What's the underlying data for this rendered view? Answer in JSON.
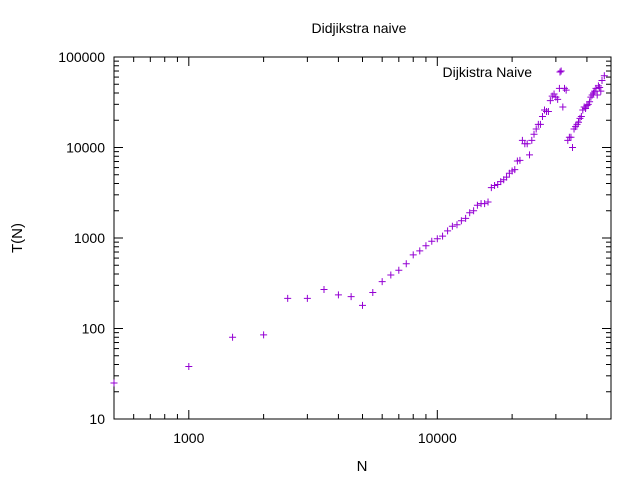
{
  "chart_data": {
    "type": "scatter",
    "title": "Didjikstra naive",
    "xlabel": "N",
    "ylabel": "T(N)",
    "xscale": "log",
    "yscale": "log",
    "xlim": [
      500,
      50000
    ],
    "ylim": [
      10,
      100000
    ],
    "grid": false,
    "legend": "top-right",
    "x_ticks": [
      {
        "value": 1000,
        "label": "1000"
      },
      {
        "value": 10000,
        "label": "10000"
      }
    ],
    "y_ticks": [
      {
        "value": 10,
        "label": "10"
      },
      {
        "value": 100,
        "label": "100"
      },
      {
        "value": 1000,
        "label": "1000"
      },
      {
        "value": 10000,
        "label": "10000"
      },
      {
        "value": 100000,
        "label": "100000"
      }
    ],
    "series": [
      {
        "name": "Dijkistra Naive",
        "color": "#9400d3",
        "marker": "plus",
        "points": [
          [
            500,
            25
          ],
          [
            1000,
            38
          ],
          [
            1500,
            80
          ],
          [
            2000,
            85
          ],
          [
            2500,
            215
          ],
          [
            3000,
            215
          ],
          [
            3500,
            270
          ],
          [
            4000,
            235
          ],
          [
            4500,
            225
          ],
          [
            5000,
            180
          ],
          [
            5500,
            250
          ],
          [
            6000,
            330
          ],
          [
            6500,
            390
          ],
          [
            7000,
            440
          ],
          [
            7500,
            520
          ],
          [
            8000,
            650
          ],
          [
            8500,
            720
          ],
          [
            9000,
            820
          ],
          [
            9500,
            920
          ],
          [
            10000,
            980
          ],
          [
            10500,
            1050
          ],
          [
            11000,
            1200
          ],
          [
            11500,
            1350
          ],
          [
            12000,
            1400
          ],
          [
            12500,
            1550
          ],
          [
            13000,
            1650
          ],
          [
            13500,
            1900
          ],
          [
            14000,
            2000
          ],
          [
            14500,
            2300
          ],
          [
            15000,
            2400
          ],
          [
            15500,
            2400
          ],
          [
            16000,
            2500
          ],
          [
            16500,
            3600
          ],
          [
            17000,
            3800
          ],
          [
            17500,
            3900
          ],
          [
            18000,
            4200
          ],
          [
            18500,
            4400
          ],
          [
            19000,
            4700
          ],
          [
            19500,
            5200
          ],
          [
            20000,
            5500
          ],
          [
            20500,
            5700
          ],
          [
            21000,
            7100
          ],
          [
            21500,
            7200
          ],
          [
            22000,
            12000
          ],
          [
            22500,
            11000
          ],
          [
            23000,
            11000
          ],
          [
            23500,
            8300
          ],
          [
            24000,
            12000
          ],
          [
            24500,
            14000
          ],
          [
            25000,
            16000
          ],
          [
            25500,
            18000
          ],
          [
            26000,
            18000
          ],
          [
            26500,
            22000
          ],
          [
            27000,
            26000
          ],
          [
            27500,
            25000
          ],
          [
            28000,
            25000
          ],
          [
            28500,
            33000
          ],
          [
            29000,
            37000
          ],
          [
            29500,
            39000
          ],
          [
            30000,
            36000
          ],
          [
            30500,
            34000
          ],
          [
            31000,
            45000
          ],
          [
            31500,
            70000
          ],
          [
            32000,
            28000
          ],
          [
            32500,
            45000
          ],
          [
            33000,
            43000
          ],
          [
            33500,
            12000
          ],
          [
            34000,
            13000
          ],
          [
            34500,
            13000
          ],
          [
            35000,
            10000
          ],
          [
            35500,
            16000
          ],
          [
            36000,
            17000
          ],
          [
            36500,
            18000
          ],
          [
            37000,
            19000
          ],
          [
            37500,
            21000
          ],
          [
            38000,
            22000
          ],
          [
            38500,
            26000
          ],
          [
            39000,
            28000
          ],
          [
            39500,
            27000
          ],
          [
            40000,
            29000
          ],
          [
            40500,
            30000
          ],
          [
            41000,
            32000
          ],
          [
            41500,
            36000
          ],
          [
            42000,
            38000
          ],
          [
            42500,
            40000
          ],
          [
            43000,
            42000
          ],
          [
            43500,
            45000
          ],
          [
            44000,
            38000
          ],
          [
            44500,
            48000
          ],
          [
            45000,
            46000
          ],
          [
            45500,
            42000
          ],
          [
            46000,
            55000
          ],
          [
            47000,
            62000
          ]
        ]
      }
    ]
  }
}
